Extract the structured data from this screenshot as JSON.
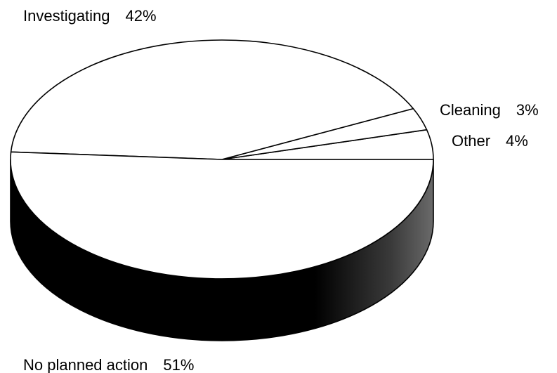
{
  "chart_data": {
    "type": "pie",
    "style": "3d",
    "title": "",
    "slices": [
      {
        "label": "Investigating",
        "value": 42,
        "value_label": "42%"
      },
      {
        "label": "Cleaning",
        "value": 3,
        "value_label": "3%"
      },
      {
        "label": "Other",
        "value": 4,
        "value_label": "4%"
      },
      {
        "label": "No planned action",
        "value": 51,
        "value_label": "51%"
      }
    ],
    "colors": {
      "face": "#ffffff",
      "outline": "#000000",
      "side": "#000000",
      "text": "#000000"
    }
  }
}
